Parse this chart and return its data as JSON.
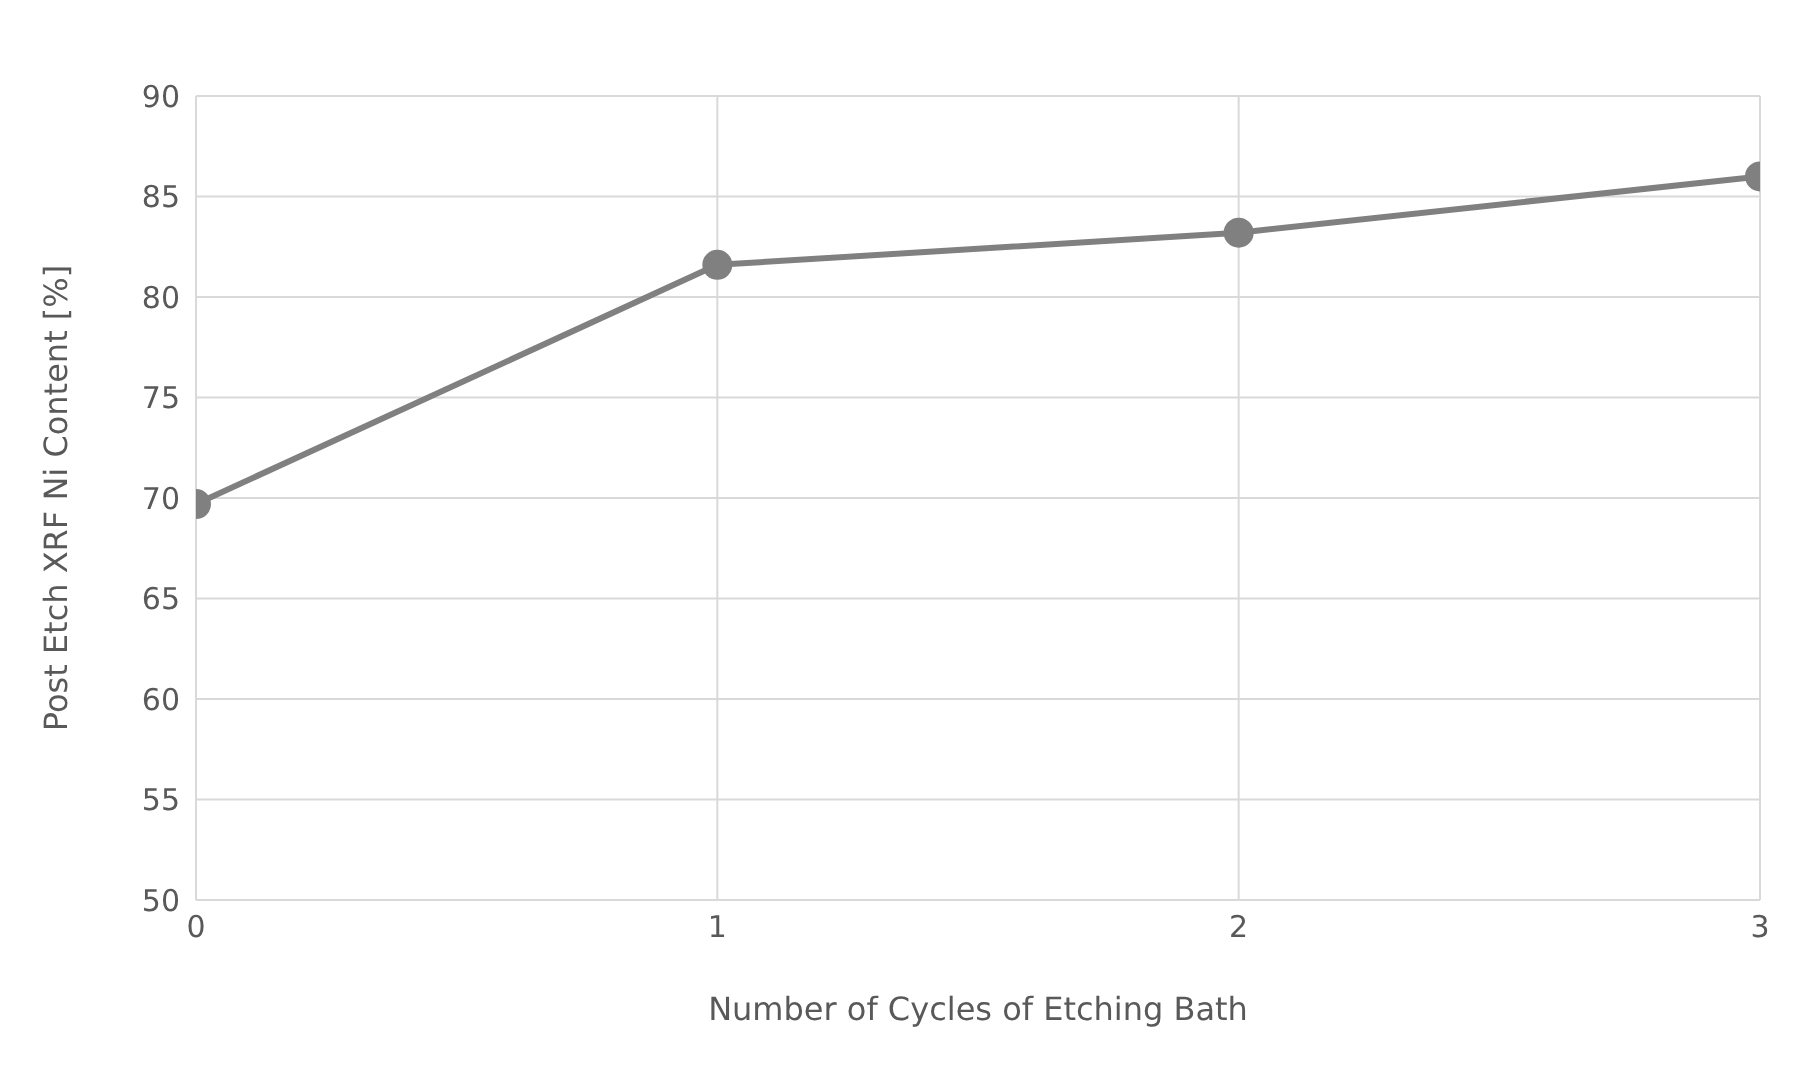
{
  "chart_data": {
    "type": "line",
    "xlabel": "Number of Cycles of Etching Bath",
    "ylabel": "Post Etch XRF Ni Content [%]",
    "x": [
      0,
      1,
      2,
      3
    ],
    "series": [
      {
        "color": "#808080",
        "values": [
          69.7,
          81.6,
          83.2,
          86.0
        ]
      }
    ],
    "xlim": [
      0,
      3
    ],
    "xticks": [
      0,
      1,
      2,
      3
    ],
    "ylim": [
      50,
      90
    ],
    "yticks": [
      50,
      55,
      60,
      65,
      70,
      75,
      80,
      85,
      90
    ],
    "grid": true,
    "legend": false,
    "marker": "circle",
    "line_style": "solid"
  }
}
